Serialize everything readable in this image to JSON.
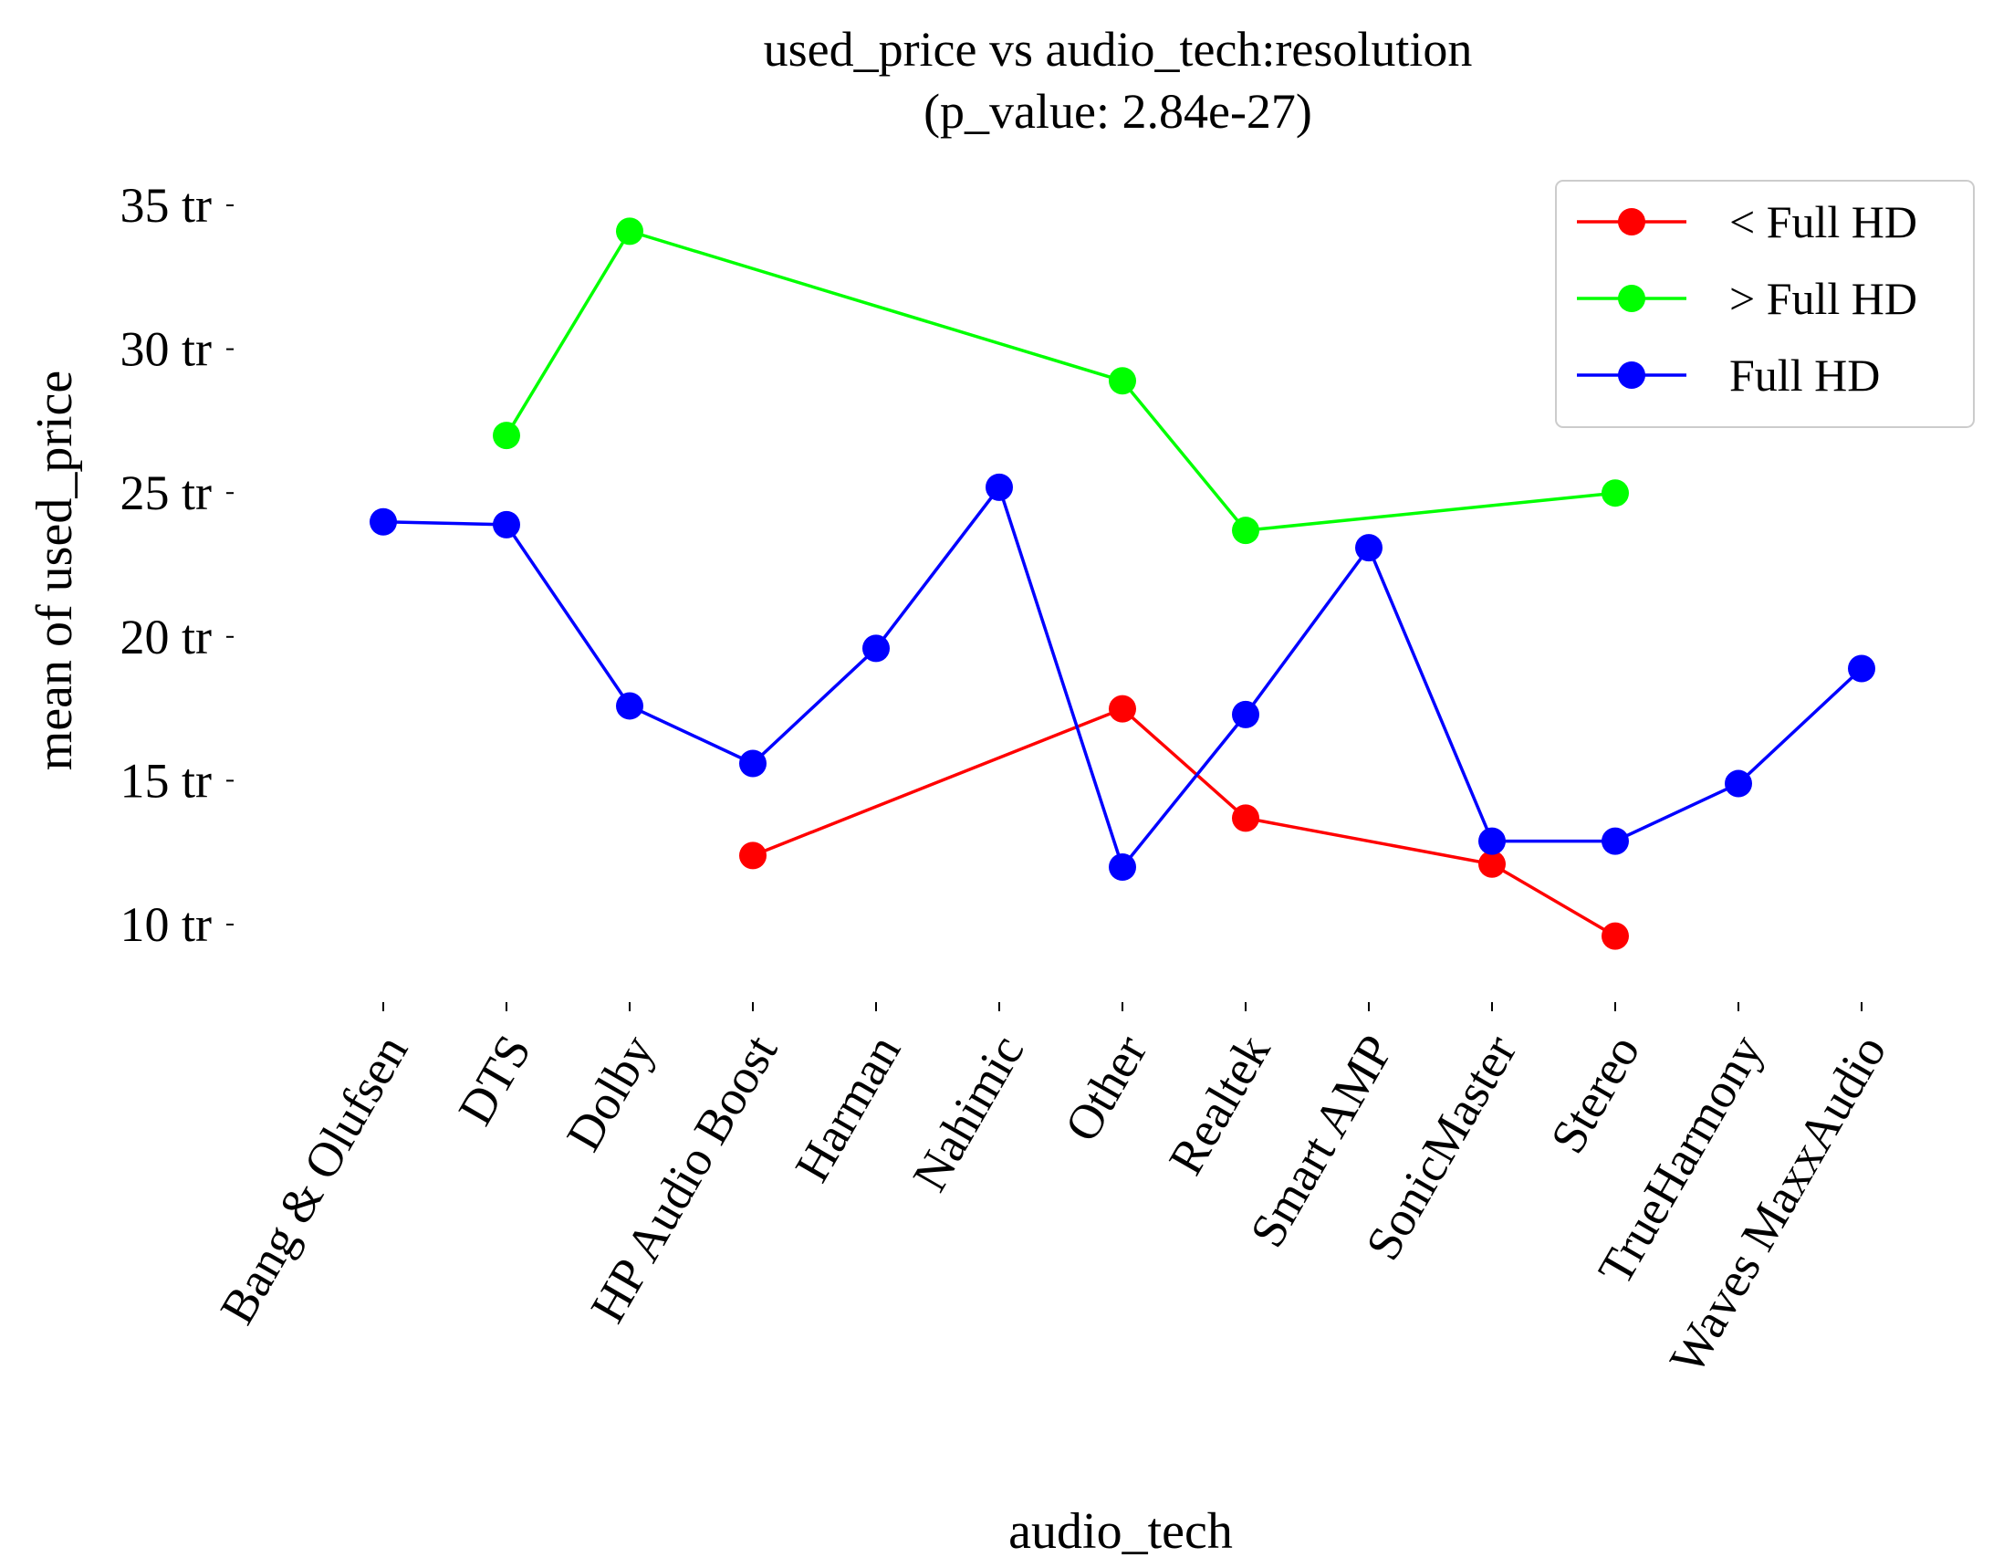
{
  "chart_data": {
    "type": "line",
    "title": "used_price vs audio_tech:resolution",
    "subtitle": "(p_value: 2.84e-27)",
    "xlabel": "audio_tech",
    "ylabel": "mean of used_price",
    "categories": [
      "Bang & Olufsen",
      "DTS",
      "Dolby",
      "HP Audio Boost",
      "Harman",
      "Nahimic",
      "Other",
      "Realtek",
      "Smart AMP",
      "SonicMaster",
      "Stereo",
      "TrueHarmony",
      "Waves MaxxAudio"
    ],
    "ylim": [
      7.0,
      36.5
    ],
    "y_ticks": [
      10,
      15,
      20,
      25,
      30,
      35
    ],
    "y_tick_labels": [
      "10 tr",
      "15 tr",
      "20 tr",
      "25 tr",
      "30 tr",
      "35 tr"
    ],
    "grid": false,
    "legend_position": "top-right",
    "series": [
      {
        "name": "< Full HD",
        "color": "#ff0000",
        "values": [
          null,
          null,
          null,
          12.4,
          null,
          null,
          17.5,
          13.7,
          null,
          12.1,
          9.6,
          null,
          null
        ]
      },
      {
        "name": "> Full HD",
        "color": "#00ff00",
        "values": [
          null,
          27.0,
          34.1,
          null,
          null,
          null,
          28.9,
          23.7,
          null,
          null,
          25.0,
          null,
          null
        ]
      },
      {
        "name": "Full HD",
        "color": "#0000ff",
        "values": [
          24.0,
          23.9,
          17.6,
          15.6,
          19.6,
          25.2,
          12.0,
          17.3,
          23.1,
          12.9,
          12.9,
          14.9,
          18.9
        ]
      }
    ]
  }
}
